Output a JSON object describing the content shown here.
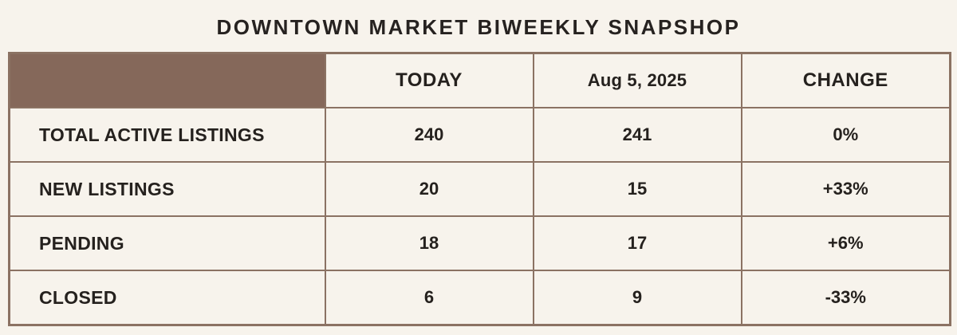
{
  "title": "DOWNTOWN MARKET BIWEEKLY SNAPSHOP",
  "colors": {
    "background": "#f7f3ec",
    "header_spacer_fill": "#85685a",
    "border": "#8b7263",
    "text": "#25211e"
  },
  "table": {
    "header": {
      "today": "TODAY",
      "date": "Aug 5, 2025",
      "change": "CHANGE"
    },
    "rows": [
      {
        "label": "TOTAL ACTIVE LISTINGS",
        "today": "240",
        "previous": "241",
        "change": "0%"
      },
      {
        "label": "NEW LISTINGS",
        "today": "20",
        "previous": "15",
        "change": "+33%"
      },
      {
        "label": "PENDING",
        "today": "18",
        "previous": "17",
        "change": "+6%"
      },
      {
        "label": "CLOSED",
        "today": "6",
        "previous": "9",
        "change": "-33%"
      }
    ]
  },
  "chart_data": {
    "type": "table",
    "title": "DOWNTOWN MARKET BIWEEKLY SNAPSHOP",
    "columns": [
      "",
      "TODAY",
      "Aug 5, 2025",
      "CHANGE"
    ],
    "rows": [
      [
        "TOTAL ACTIVE LISTINGS",
        240,
        241,
        "0%"
      ],
      [
        "NEW LISTINGS",
        20,
        15,
        "+33%"
      ],
      [
        "PENDING",
        18,
        17,
        "+6%"
      ],
      [
        "CLOSED",
        6,
        9,
        "-33%"
      ]
    ]
  }
}
